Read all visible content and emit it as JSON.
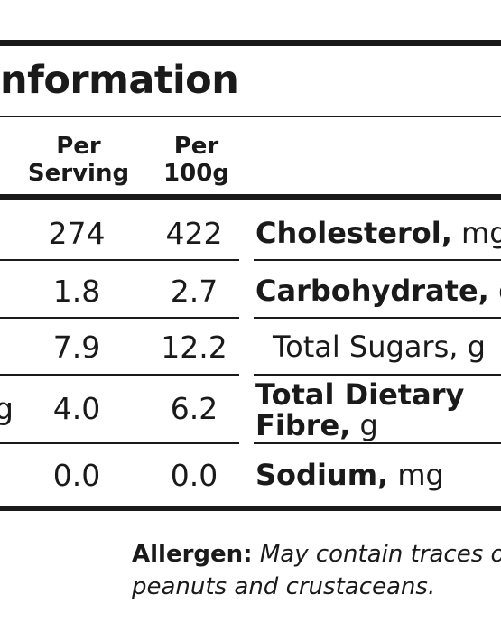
{
  "panel": {
    "title": "nformation",
    "headers": {
      "per_serving": [
        "Per",
        "Serving"
      ],
      "per_100g": [
        "Per",
        "100g"
      ]
    },
    "left_rows": [
      {
        "partial_label": "",
        "serving": "274",
        "per100": "422"
      },
      {
        "partial_label": "",
        "serving": "1.8",
        "per100": "2.7"
      },
      {
        "partial_label": "",
        "serving": "7.9",
        "per100": "12.2"
      },
      {
        "partial_label": "g",
        "serving": "4.0",
        "per100": "6.2"
      },
      {
        "partial_label": "",
        "serving": "0.0",
        "per100": "0.0"
      }
    ],
    "right_rows": [
      {
        "name": "Cholesterol,",
        "unit": " mg"
      },
      {
        "name": "Carbohydrate,",
        "unit": " g"
      },
      {
        "name": "",
        "unit": "Total Sugars, g"
      },
      {
        "name": "Total Dietary",
        "name2": "Fibre,",
        "unit": " g"
      },
      {
        "name": "Sodium,",
        "unit": " mg"
      }
    ],
    "allergen": {
      "label": "Allergen:",
      "text1": " May contain traces of",
      "text2": "peanuts and crustaceans."
    }
  }
}
